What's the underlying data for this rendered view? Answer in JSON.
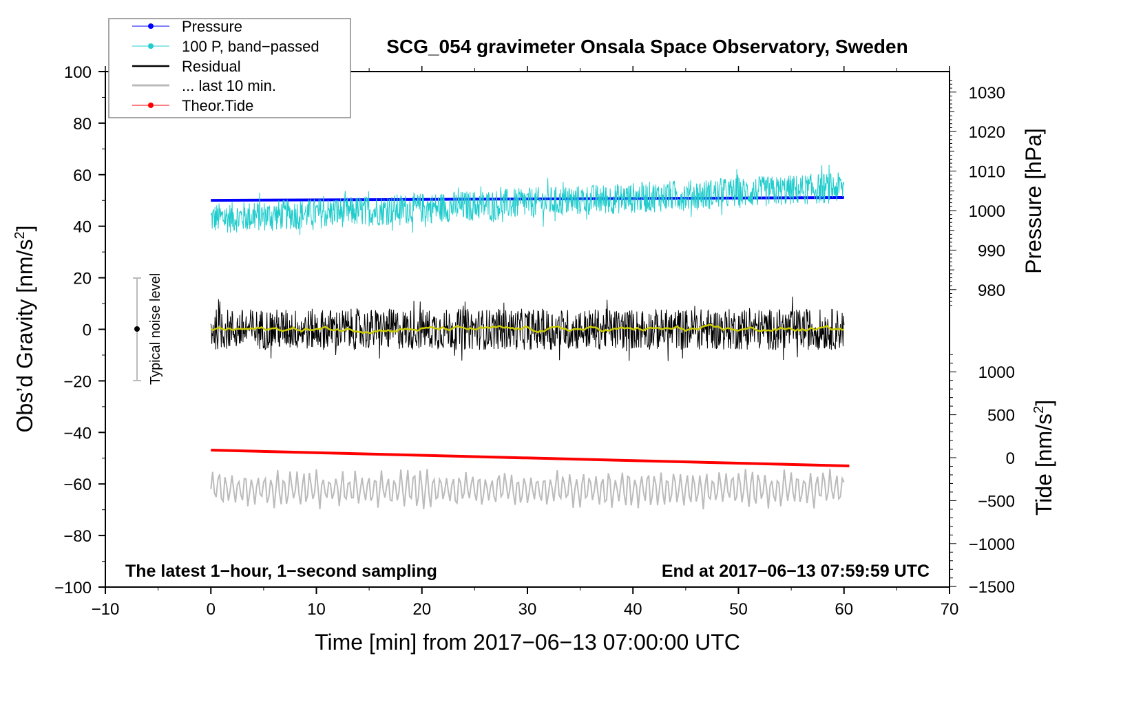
{
  "chart_data": {
    "type": "line",
    "title": "SCG_054 gravimeter Onsala Space Observatory, Sweden",
    "xlabel": "Time [min] from 2017−06−13 07:00:00 UTC",
    "ylabel": "Obs’d Gravity [nm/s",
    "ylabel_sup": "2",
    "ylabel_end": "]",
    "y2label": "Pressure [hPa]",
    "y3label": "Tide [nm/s",
    "y3label_sup": "2",
    "y3label_end": "]",
    "xlim": [
      -10,
      70
    ],
    "ylim": [
      -100,
      100
    ],
    "xticks": [
      -10,
      0,
      10,
      20,
      30,
      40,
      50,
      60,
      70
    ],
    "xtick_labels": [
      "−10",
      "0",
      "10",
      "20",
      "30",
      "40",
      "50",
      "60",
      "70"
    ],
    "yticks": [
      100,
      80,
      60,
      40,
      20,
      0,
      -20,
      -40,
      -60,
      -80,
      -100
    ],
    "ytick_labels": [
      "100",
      "80",
      "60",
      "40",
      "20",
      "0",
      "−20",
      "−40",
      "−60",
      "−80",
      "−100"
    ],
    "pressure_ticks": [
      1030,
      1020,
      1010,
      1000,
      990,
      980
    ],
    "pressure_tick_labels": [
      "1030",
      "1020",
      "1010",
      "1000",
      "990",
      "980"
    ],
    "tide_ticks": [
      1000,
      500,
      0,
      -500,
      -1000,
      -1500
    ],
    "tide_tick_labels": [
      "1000",
      "500",
      "0",
      "−500",
      "−1000",
      "−1500"
    ],
    "annotations": {
      "left": "The latest 1−hour, 1−second sampling",
      "right": "End at 2017−06−13 07:59:59 UTC",
      "noise": "Typical noise level"
    },
    "noise_level": {
      "x": -7,
      "center": 0,
      "half_range": 20
    },
    "legend": {
      "placement": "top-left",
      "entries": [
        "Pressure",
        "100 P, band−passed",
        "Residual",
        "... last 10 min.",
        "Theor.Tide"
      ]
    },
    "series": [
      {
        "name": "Pressure",
        "axis": "pressure",
        "color": "#0000ff",
        "x_range": [
          0,
          60
        ],
        "start": 1002.6,
        "end": 1003.3
      },
      {
        "name": "100 P, band−passed",
        "axis": "gravity",
        "color": "#22cccc",
        "x_range": [
          0,
          60
        ],
        "mean_start": 43,
        "mean_end": 55,
        "noise_amplitude": 6
      },
      {
        "name": "Residual",
        "axis": "gravity",
        "color": "#000000",
        "x_range": [
          0,
          60
        ],
        "mean_start": 0,
        "mean_end": 0,
        "noise_amplitude": 8
      },
      {
        "name": "Residual smoothed",
        "axis": "gravity",
        "color": "#cccc00",
        "x_range": [
          0,
          60
        ],
        "mean_start": 0,
        "mean_end": 0,
        "noise_amplitude": 1
      },
      {
        "name": "... last 10 min.",
        "axis": "gravity",
        "color": "#bbbbbb",
        "x_range": [
          0,
          60
        ],
        "mean_start": -62,
        "mean_end": -62,
        "noise_amplitude": 8
      },
      {
        "name": "Theor.Tide",
        "axis": "tide",
        "color": "#ff0000",
        "x_range": [
          0,
          60.5
        ],
        "start": 88,
        "end": -96
      }
    ]
  }
}
